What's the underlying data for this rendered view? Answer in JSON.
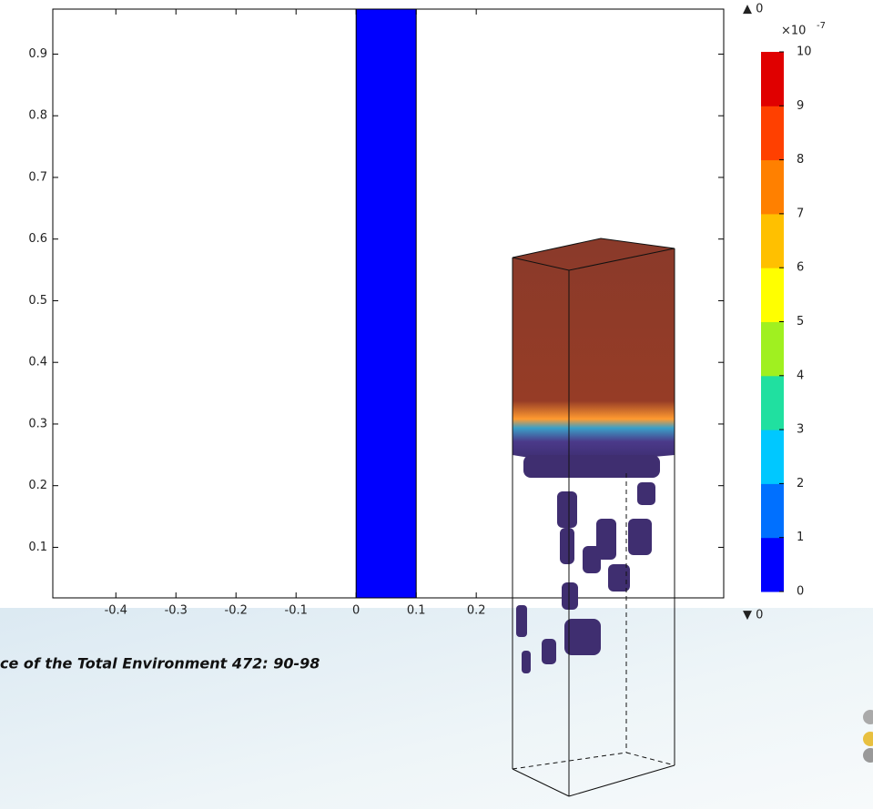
{
  "chart_data": {
    "type": "surface",
    "xlim": [
      -0.505,
      0.612
    ],
    "ylim": [
      0.018,
      0.973
    ],
    "xticks": [
      -0.4,
      -0.3,
      -0.2,
      -0.1,
      0,
      0.1,
      0.2
    ],
    "yticks": [
      0.1,
      0.2,
      0.3,
      0.4,
      0.5,
      0.6,
      0.7,
      0.8,
      0.9
    ],
    "region": {
      "x": [
        0,
        0.1
      ],
      "color": "#0000ff"
    },
    "colorbar": {
      "lim": [
        0,
        10
      ],
      "ticks": [
        0,
        1,
        2,
        3,
        4,
        5,
        6,
        7,
        8,
        9,
        10
      ],
      "multiplier": "×10",
      "exponent": "-7",
      "max_label": "▲ 0",
      "min_label": "▼ 0",
      "colors": [
        "#0000ff",
        "#0070ff",
        "#00c8ff",
        "#20e0a0",
        "#a0f020",
        "#ffff00",
        "#ffc000",
        "#ff8000",
        "#ff4000",
        "#e00000"
      ]
    },
    "citation": "ce of the Total Environment 472: 90-98"
  }
}
